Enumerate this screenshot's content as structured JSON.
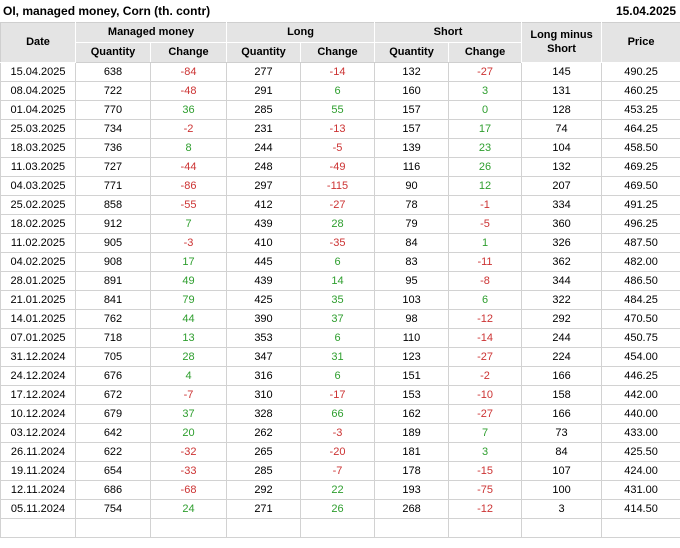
{
  "title": "OI, managed money, Corn (th. contr)",
  "report_date": "15.04.2025",
  "colors": {
    "positive": "#2e9e2e",
    "negative": "#cc3333",
    "header_bg": "#e4e4e4",
    "border": "#d2d2d2",
    "text": "#000000"
  },
  "chart_data": {
    "type": "table",
    "title": "OI, managed money, Corn (th. contr)",
    "report_date": "15.04.2025",
    "header": {
      "date": "Date",
      "groups": [
        {
          "label": "Managed money"
        },
        {
          "label": "Long"
        },
        {
          "label": "Short"
        }
      ],
      "sub": {
        "quantity": "Quantity",
        "change": "Change"
      },
      "long_minus_short": "Long minus Short",
      "price": "Price"
    },
    "columns": [
      {
        "key": "date",
        "type": "text"
      },
      {
        "key": "managed-money-quantity",
        "type": "number"
      },
      {
        "key": "managed-money-change",
        "type": "change"
      },
      {
        "key": "long-quantity",
        "type": "number"
      },
      {
        "key": "long-change",
        "type": "change"
      },
      {
        "key": "short-quantity",
        "type": "number"
      },
      {
        "key": "short-change",
        "type": "change"
      },
      {
        "key": "long-minus-short",
        "type": "number"
      },
      {
        "key": "price",
        "type": "number"
      }
    ],
    "rows": [
      [
        "15.04.2025",
        638,
        -84,
        277,
        -14,
        132,
        -27,
        145,
        "490.25"
      ],
      [
        "08.04.2025",
        722,
        -48,
        291,
        6,
        160,
        3,
        131,
        "460.25"
      ],
      [
        "01.04.2025",
        770,
        36,
        285,
        55,
        157,
        0,
        128,
        "453.25"
      ],
      [
        "25.03.2025",
        734,
        -2,
        231,
        -13,
        157,
        17,
        74,
        "464.25"
      ],
      [
        "18.03.2025",
        736,
        8,
        244,
        -5,
        139,
        23,
        104,
        "458.50"
      ],
      [
        "11.03.2025",
        727,
        -44,
        248,
        -49,
        116,
        26,
        132,
        "469.25"
      ],
      [
        "04.03.2025",
        771,
        -86,
        297,
        -115,
        90,
        12,
        207,
        "469.50"
      ],
      [
        "25.02.2025",
        858,
        -55,
        412,
        -27,
        78,
        -1,
        334,
        "491.25"
      ],
      [
        "18.02.2025",
        912,
        7,
        439,
        28,
        79,
        -5,
        360,
        "496.25"
      ],
      [
        "11.02.2025",
        905,
        -3,
        410,
        -35,
        84,
        1,
        326,
        "487.50"
      ],
      [
        "04.02.2025",
        908,
        17,
        445,
        6,
        83,
        -11,
        362,
        "482.00"
      ],
      [
        "28.01.2025",
        891,
        49,
        439,
        14,
        95,
        -8,
        344,
        "486.50"
      ],
      [
        "21.01.2025",
        841,
        79,
        425,
        35,
        103,
        6,
        322,
        "484.25"
      ],
      [
        "14.01.2025",
        762,
        44,
        390,
        37,
        98,
        -12,
        292,
        "470.50"
      ],
      [
        "07.01.2025",
        718,
        13,
        353,
        6,
        110,
        -14,
        244,
        "450.75"
      ],
      [
        "31.12.2024",
        705,
        28,
        347,
        31,
        123,
        -27,
        224,
        "454.00"
      ],
      [
        "24.12.2024",
        676,
        4,
        316,
        6,
        151,
        -2,
        166,
        "446.25"
      ],
      [
        "17.12.2024",
        672,
        -7,
        310,
        -17,
        153,
        -10,
        158,
        "442.00"
      ],
      [
        "10.12.2024",
        679,
        37,
        328,
        66,
        162,
        -27,
        166,
        "440.00"
      ],
      [
        "03.12.2024",
        642,
        20,
        262,
        -3,
        189,
        7,
        73,
        "433.00"
      ],
      [
        "26.11.2024",
        622,
        -32,
        265,
        -20,
        181,
        3,
        84,
        "425.50"
      ],
      [
        "19.11.2024",
        654,
        -33,
        285,
        -7,
        178,
        -15,
        107,
        "424.00"
      ],
      [
        "12.11.2024",
        686,
        -68,
        292,
        22,
        193,
        -75,
        100,
        "431.00"
      ],
      [
        "05.11.2024",
        754,
        24,
        271,
        26,
        268,
        -12,
        3,
        "414.50"
      ]
    ]
  }
}
